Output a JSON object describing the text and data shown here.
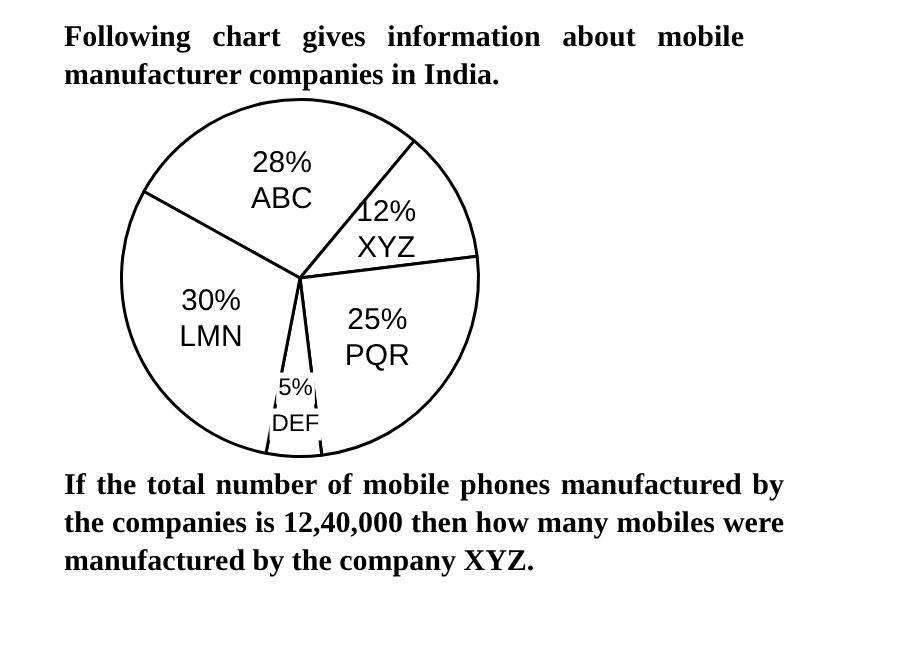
{
  "chart_data": {
    "type": "pie",
    "title": "Following chart gives information about mobile manufacturer companies in India.",
    "categories": [
      "ABC",
      "XYZ",
      "PQR",
      "DEF",
      "LMN"
    ],
    "values": [
      28,
      12,
      25,
      5,
      30
    ],
    "value_labels": [
      "28%",
      "12%",
      "25%",
      "5%",
      "30%"
    ],
    "colors": [
      "#ffffff",
      "#ffffff",
      "#ffffff",
      "#ffffff",
      "#ffffff"
    ],
    "annotations": [
      "If the total number of mobile phones manufactured by the companies is 12,40,000 then how many mobiles were manufactured by the company XYZ."
    ],
    "legend": false
  }
}
